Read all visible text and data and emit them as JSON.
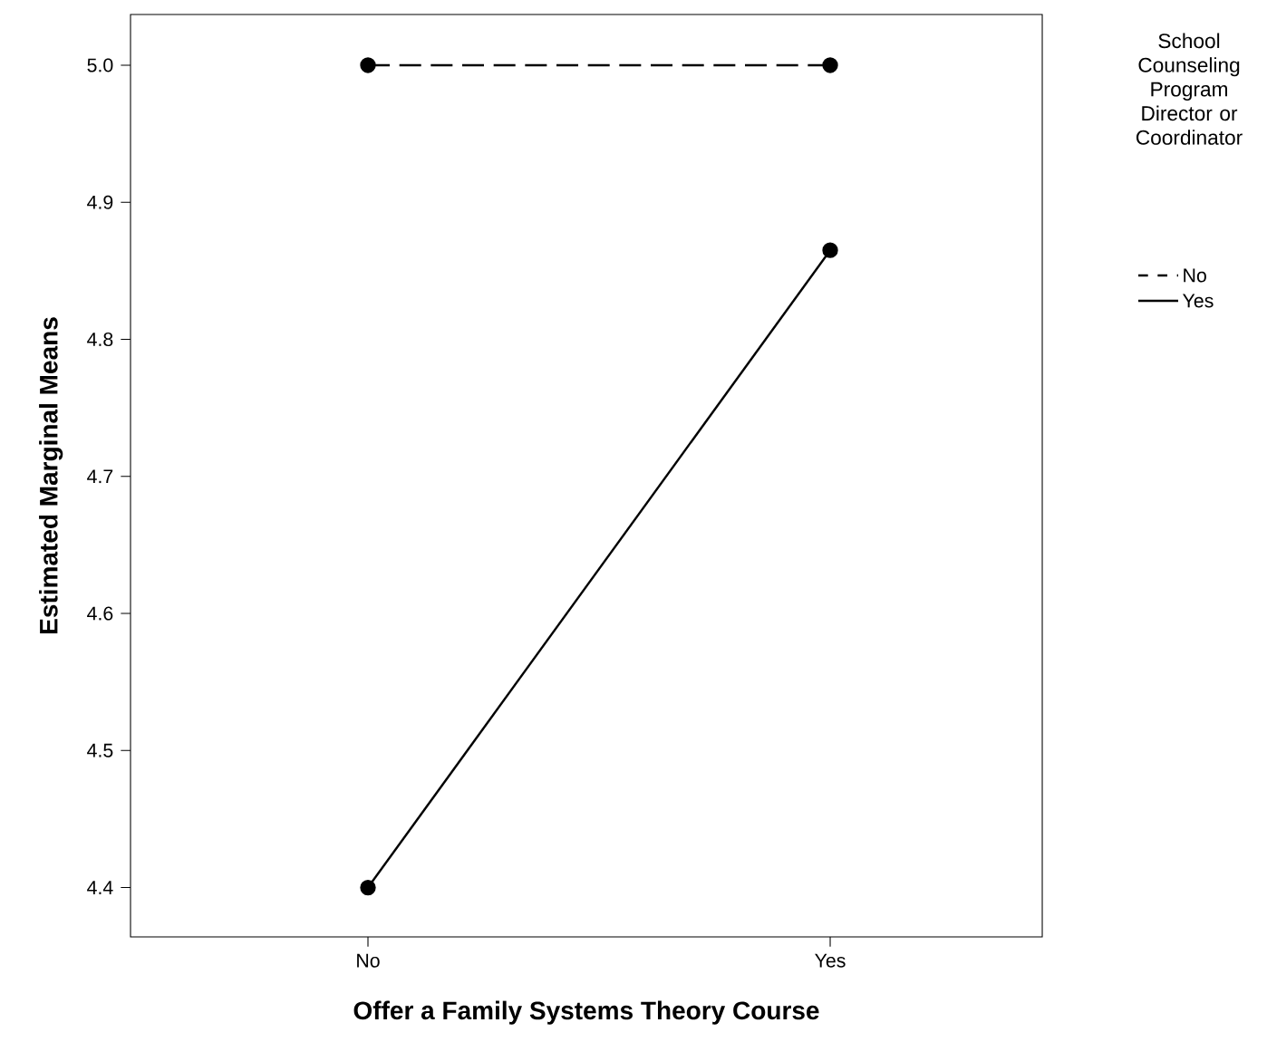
{
  "chart_data": {
    "type": "line",
    "xlabel": "Offer a Family Systems Theory Course",
    "ylabel": "Estimated Marginal Means",
    "legend_title": "School Counseling Program Director or Coordinator",
    "categories": [
      "No",
      "Yes"
    ],
    "series": [
      {
        "name": "No",
        "color": "#000000",
        "line_style": "dashed",
        "values": [
          5.0,
          5.0
        ]
      },
      {
        "name": "Yes",
        "color": "#000000",
        "line_style": "solid",
        "values": [
          4.4,
          4.865
        ]
      }
    ],
    "ylim": [
      4.364,
      5.037
    ],
    "yticks": [
      {
        "value": 4.4,
        "label": "4.4"
      },
      {
        "value": 4.5,
        "label": "4.5"
      },
      {
        "value": 4.6,
        "label": "4.6"
      },
      {
        "value": 4.7,
        "label": "4.7"
      },
      {
        "value": 4.8,
        "label": "4.8"
      },
      {
        "value": 4.9,
        "label": "4.9"
      },
      {
        "value": 5.0,
        "label": "5.0"
      }
    ],
    "marker": "circle",
    "grid": false,
    "legend": "right"
  }
}
